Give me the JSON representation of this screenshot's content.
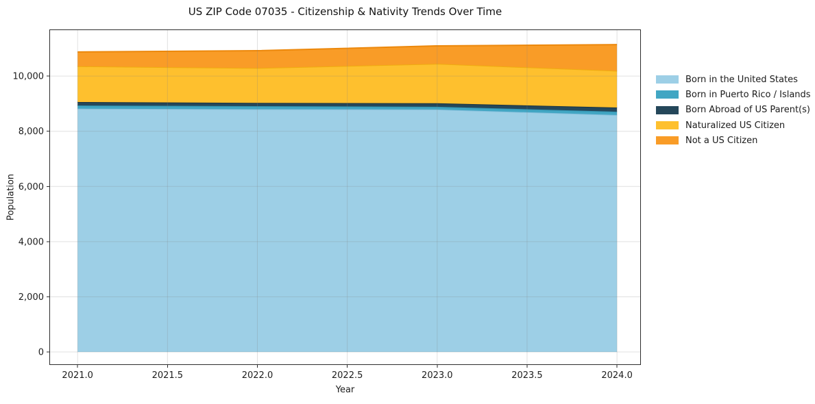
{
  "figure": {
    "background": "#ffffff"
  },
  "chart_data": {
    "type": "area",
    "stacked": true,
    "title": "US ZIP Code 07035 - Citizenship & Nativity Trends Over Time",
    "xlabel": "Year",
    "ylabel": "Population",
    "x": [
      2021,
      2022,
      2023,
      2024
    ],
    "series": [
      {
        "name": "Born in the United States",
        "color": "#9DCFE6",
        "edge_color": "#84BEDB",
        "values": [
          8820,
          8800,
          8790,
          8590
        ]
      },
      {
        "name": "Born in Puerto Rico / Islands",
        "color": "#41A6C3",
        "edge_color": "#3191AE",
        "values": [
          115,
          110,
          100,
          120
        ]
      },
      {
        "name": "Born Abroad of US Parent(s)",
        "color": "#25475A",
        "edge_color": "#1A3443",
        "values": [
          125,
          120,
          125,
          150
        ]
      },
      {
        "name": "Naturalized US Citizen",
        "color": "#FEC02E",
        "edge_color": "#EFAC0F",
        "values": [
          1295,
          1260,
          1430,
          1330
        ]
      },
      {
        "name": "Not a US Citizen",
        "color": "#F99C27",
        "edge_color": "#EC880C",
        "values": [
          520,
          630,
          650,
          950
        ]
      }
    ],
    "x_ticks": {
      "values": [
        2021.0,
        2021.5,
        2022.0,
        2022.5,
        2023.0,
        2023.5,
        2024.0
      ],
      "labels": [
        "2021.0",
        "2021.5",
        "2022.0",
        "2022.5",
        "2023.0",
        "2023.5",
        "2024.0"
      ]
    },
    "y_ticks": {
      "values": [
        0,
        2000,
        4000,
        6000,
        8000,
        10000
      ],
      "labels": [
        "0",
        "2,000",
        "4,000",
        "6,000",
        "8,000",
        "10,000"
      ]
    },
    "xlim": [
      2020.843,
      2024.133
    ],
    "ylim": [
      -470,
      11690
    ],
    "grid": true,
    "grid_color": "rgba(130,130,130,0.25)",
    "spine_color": "#2b2b2b",
    "legend_position": "right-outside"
  }
}
